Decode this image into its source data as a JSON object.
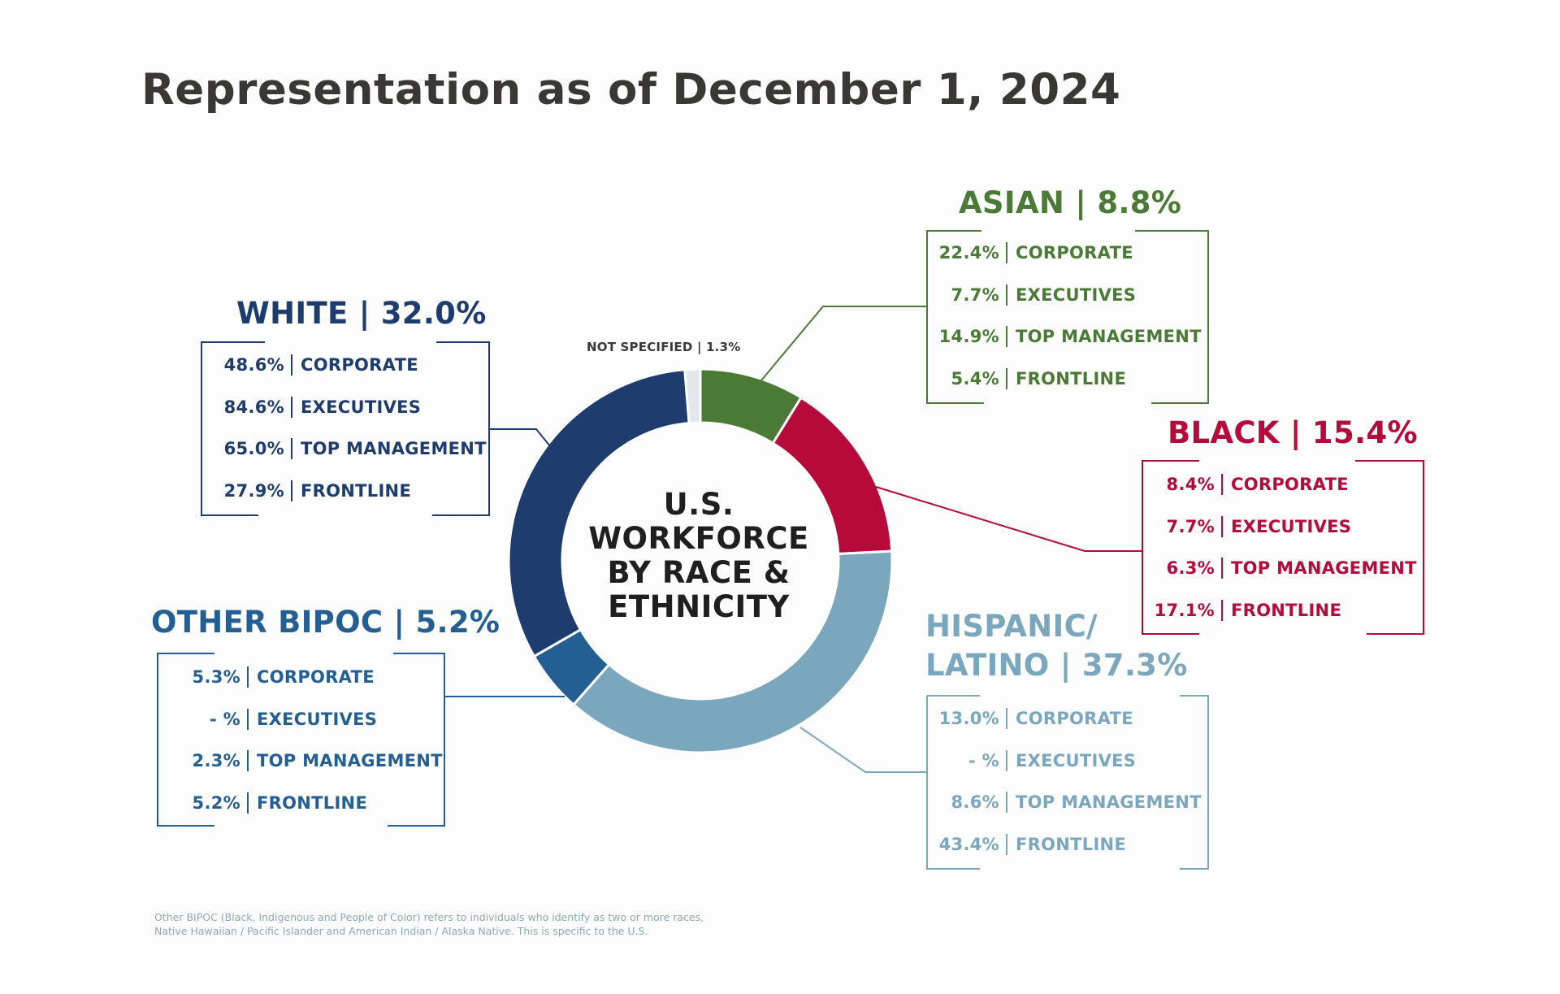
{
  "title": "Representation as of December 1, 2024",
  "colors": {
    "white": "#1e3c6e",
    "asian": "#4a7a35",
    "black": "#b50a3a",
    "hispanic": "#7aa7bd",
    "other": "#245f94",
    "not_specified": "#e3e6ea"
  },
  "chart_data": {
    "type": "pie",
    "style": "donut",
    "center_label": [
      "U.S.",
      "WORKFORCE",
      "BY RACE &",
      "ETHNICITY"
    ],
    "slices": [
      {
        "key": "asian",
        "label": "ASIAN",
        "value": 8.8,
        "display": "ASIAN | 8.8%",
        "breakdown": [
          [
            "22.4%",
            "CORPORATE"
          ],
          [
            "7.7%",
            "EXECUTIVES"
          ],
          [
            "14.9%",
            "TOP MANAGEMENT"
          ],
          [
            "5.4%",
            "FRONTLINE"
          ]
        ]
      },
      {
        "key": "black",
        "label": "BLACK",
        "value": 15.4,
        "display": "BLACK | 15.4%",
        "breakdown": [
          [
            "8.4%",
            "CORPORATE"
          ],
          [
            "7.7%",
            "EXECUTIVES"
          ],
          [
            "6.3%",
            "TOP MANAGEMENT"
          ],
          [
            "17.1%",
            "FRONTLINE"
          ]
        ]
      },
      {
        "key": "hispanic",
        "label": "HISPANIC/ LATINO",
        "value": 37.3,
        "display": [
          "HISPANIC/",
          "LATINO | 37.3%"
        ],
        "breakdown": [
          [
            "13.0%",
            "CORPORATE"
          ],
          [
            "- %",
            "EXECUTIVES"
          ],
          [
            "8.6%",
            "TOP MANAGEMENT"
          ],
          [
            "43.4%",
            "FRONTLINE"
          ]
        ]
      },
      {
        "key": "other",
        "label": "OTHER BIPOC",
        "value": 5.2,
        "display": "OTHER BIPOC | 5.2%",
        "breakdown": [
          [
            "5.3%",
            "CORPORATE"
          ],
          [
            "- %",
            "EXECUTIVES"
          ],
          [
            "2.3%",
            "TOP MANAGEMENT"
          ],
          [
            "5.2%",
            "FRONTLINE"
          ]
        ]
      },
      {
        "key": "white",
        "label": "WHITE",
        "value": 32.0,
        "display": "WHITE | 32.0%",
        "breakdown": [
          [
            "48.6%",
            "CORPORATE"
          ],
          [
            "84.6%",
            "EXECUTIVES"
          ],
          [
            "65.0%",
            "TOP MANAGEMENT"
          ],
          [
            "27.9%",
            "FRONTLINE"
          ]
        ]
      },
      {
        "key": "not_specified",
        "label": "NOT SPECIFIED",
        "value": 1.3,
        "display": "NOT SPECIFIED | 1.3%"
      }
    ]
  },
  "footnote": [
    "Other BIPOC (Black, Indigenous and People of Color) refers to individuals who identify as two or more races,",
    "Native Hawaiian / Pacific Islander and American Indian / Alaska Native. This is specific to the U.S."
  ]
}
